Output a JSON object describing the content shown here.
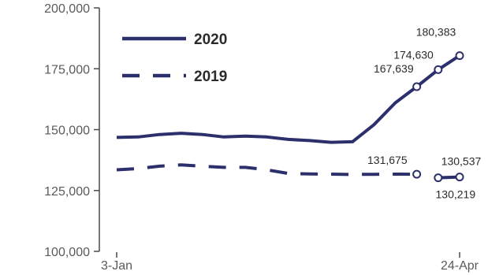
{
  "chart_data": {
    "type": "line",
    "title": "",
    "xlabel": "",
    "ylabel": "",
    "x_labels": [
      "3-Jan",
      "24-Apr"
    ],
    "ylim": [
      100000,
      200000
    ],
    "y_ticks": [
      100000,
      125000,
      150000,
      175000,
      200000
    ],
    "y_tick_labels": [
      "100,000",
      "125,000",
      "150,000",
      "175,000",
      "200,000"
    ],
    "grid": false,
    "legend": "top-left",
    "colors": {
      "series": "#2b2f6b",
      "axis": "#4a4a4a",
      "marker_fill": "#ffffff"
    },
    "series": [
      {
        "name": "2020",
        "style": "solid",
        "values": [
          146800,
          147000,
          148000,
          148500,
          148000,
          147000,
          147300,
          147000,
          146000,
          145500,
          144800,
          145000,
          152000,
          161000,
          167639,
          174630,
          180383
        ],
        "labels": [
          null,
          null,
          null,
          null,
          null,
          null,
          null,
          null,
          null,
          null,
          null,
          null,
          null,
          null,
          "167,639",
          "174,630",
          "180,383"
        ],
        "markers": [
          14,
          15,
          16
        ]
      },
      {
        "name": "2019",
        "style": "dashed",
        "values": [
          133500,
          134000,
          135000,
          135500,
          135000,
          134500,
          134500,
          133500,
          132000,
          131800,
          131700,
          131600,
          131650,
          131700,
          131675,
          130219,
          130537
        ],
        "labels": [
          null,
          null,
          null,
          null,
          null,
          null,
          null,
          null,
          null,
          null,
          null,
          null,
          null,
          null,
          "131,675",
          "130,219",
          "130,537"
        ],
        "markers": [
          14,
          15,
          16
        ],
        "gap_after": 14
      }
    ]
  }
}
